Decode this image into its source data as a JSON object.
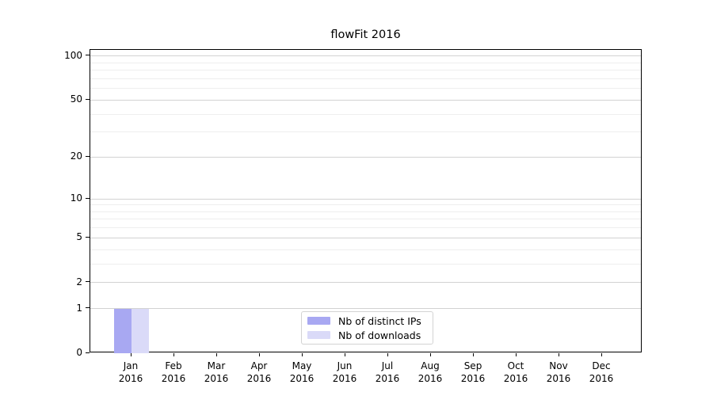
{
  "chart_data": {
    "type": "bar",
    "title": "flowFit 2016",
    "x_axis": {
      "months": [
        "Jan",
        "Feb",
        "Mar",
        "Apr",
        "May",
        "Jun",
        "Jul",
        "Aug",
        "Sep",
        "Oct",
        "Nov",
        "Dec"
      ],
      "year": "2016"
    },
    "y_axis": {
      "scale": "log1p",
      "tick_values": [
        0,
        1,
        2,
        5,
        10,
        20,
        50,
        100
      ],
      "minor_grid_values": [
        3,
        4,
        6,
        7,
        8,
        9,
        30,
        40,
        60,
        70,
        80,
        90
      ],
      "ylim": [
        0,
        110
      ]
    },
    "series": [
      {
        "name": "Nb of distinct IPs",
        "color": "#a8a8f2",
        "values": [
          1,
          0,
          0,
          0,
          0,
          0,
          0,
          0,
          0,
          0,
          0,
          0
        ]
      },
      {
        "name": "Nb of downloads",
        "color": "#dadaf8",
        "values": [
          1,
          0,
          0,
          0,
          0,
          0,
          0,
          0,
          0,
          0,
          0,
          0
        ]
      }
    ],
    "legend": {
      "position": "lower-center"
    },
    "grid": "horizontal"
  },
  "style": {
    "major_grid_color": "#d2d2d2",
    "minor_grid_color": "#eeeeee",
    "axis_color": "#000000",
    "background_color": "#ffffff"
  }
}
